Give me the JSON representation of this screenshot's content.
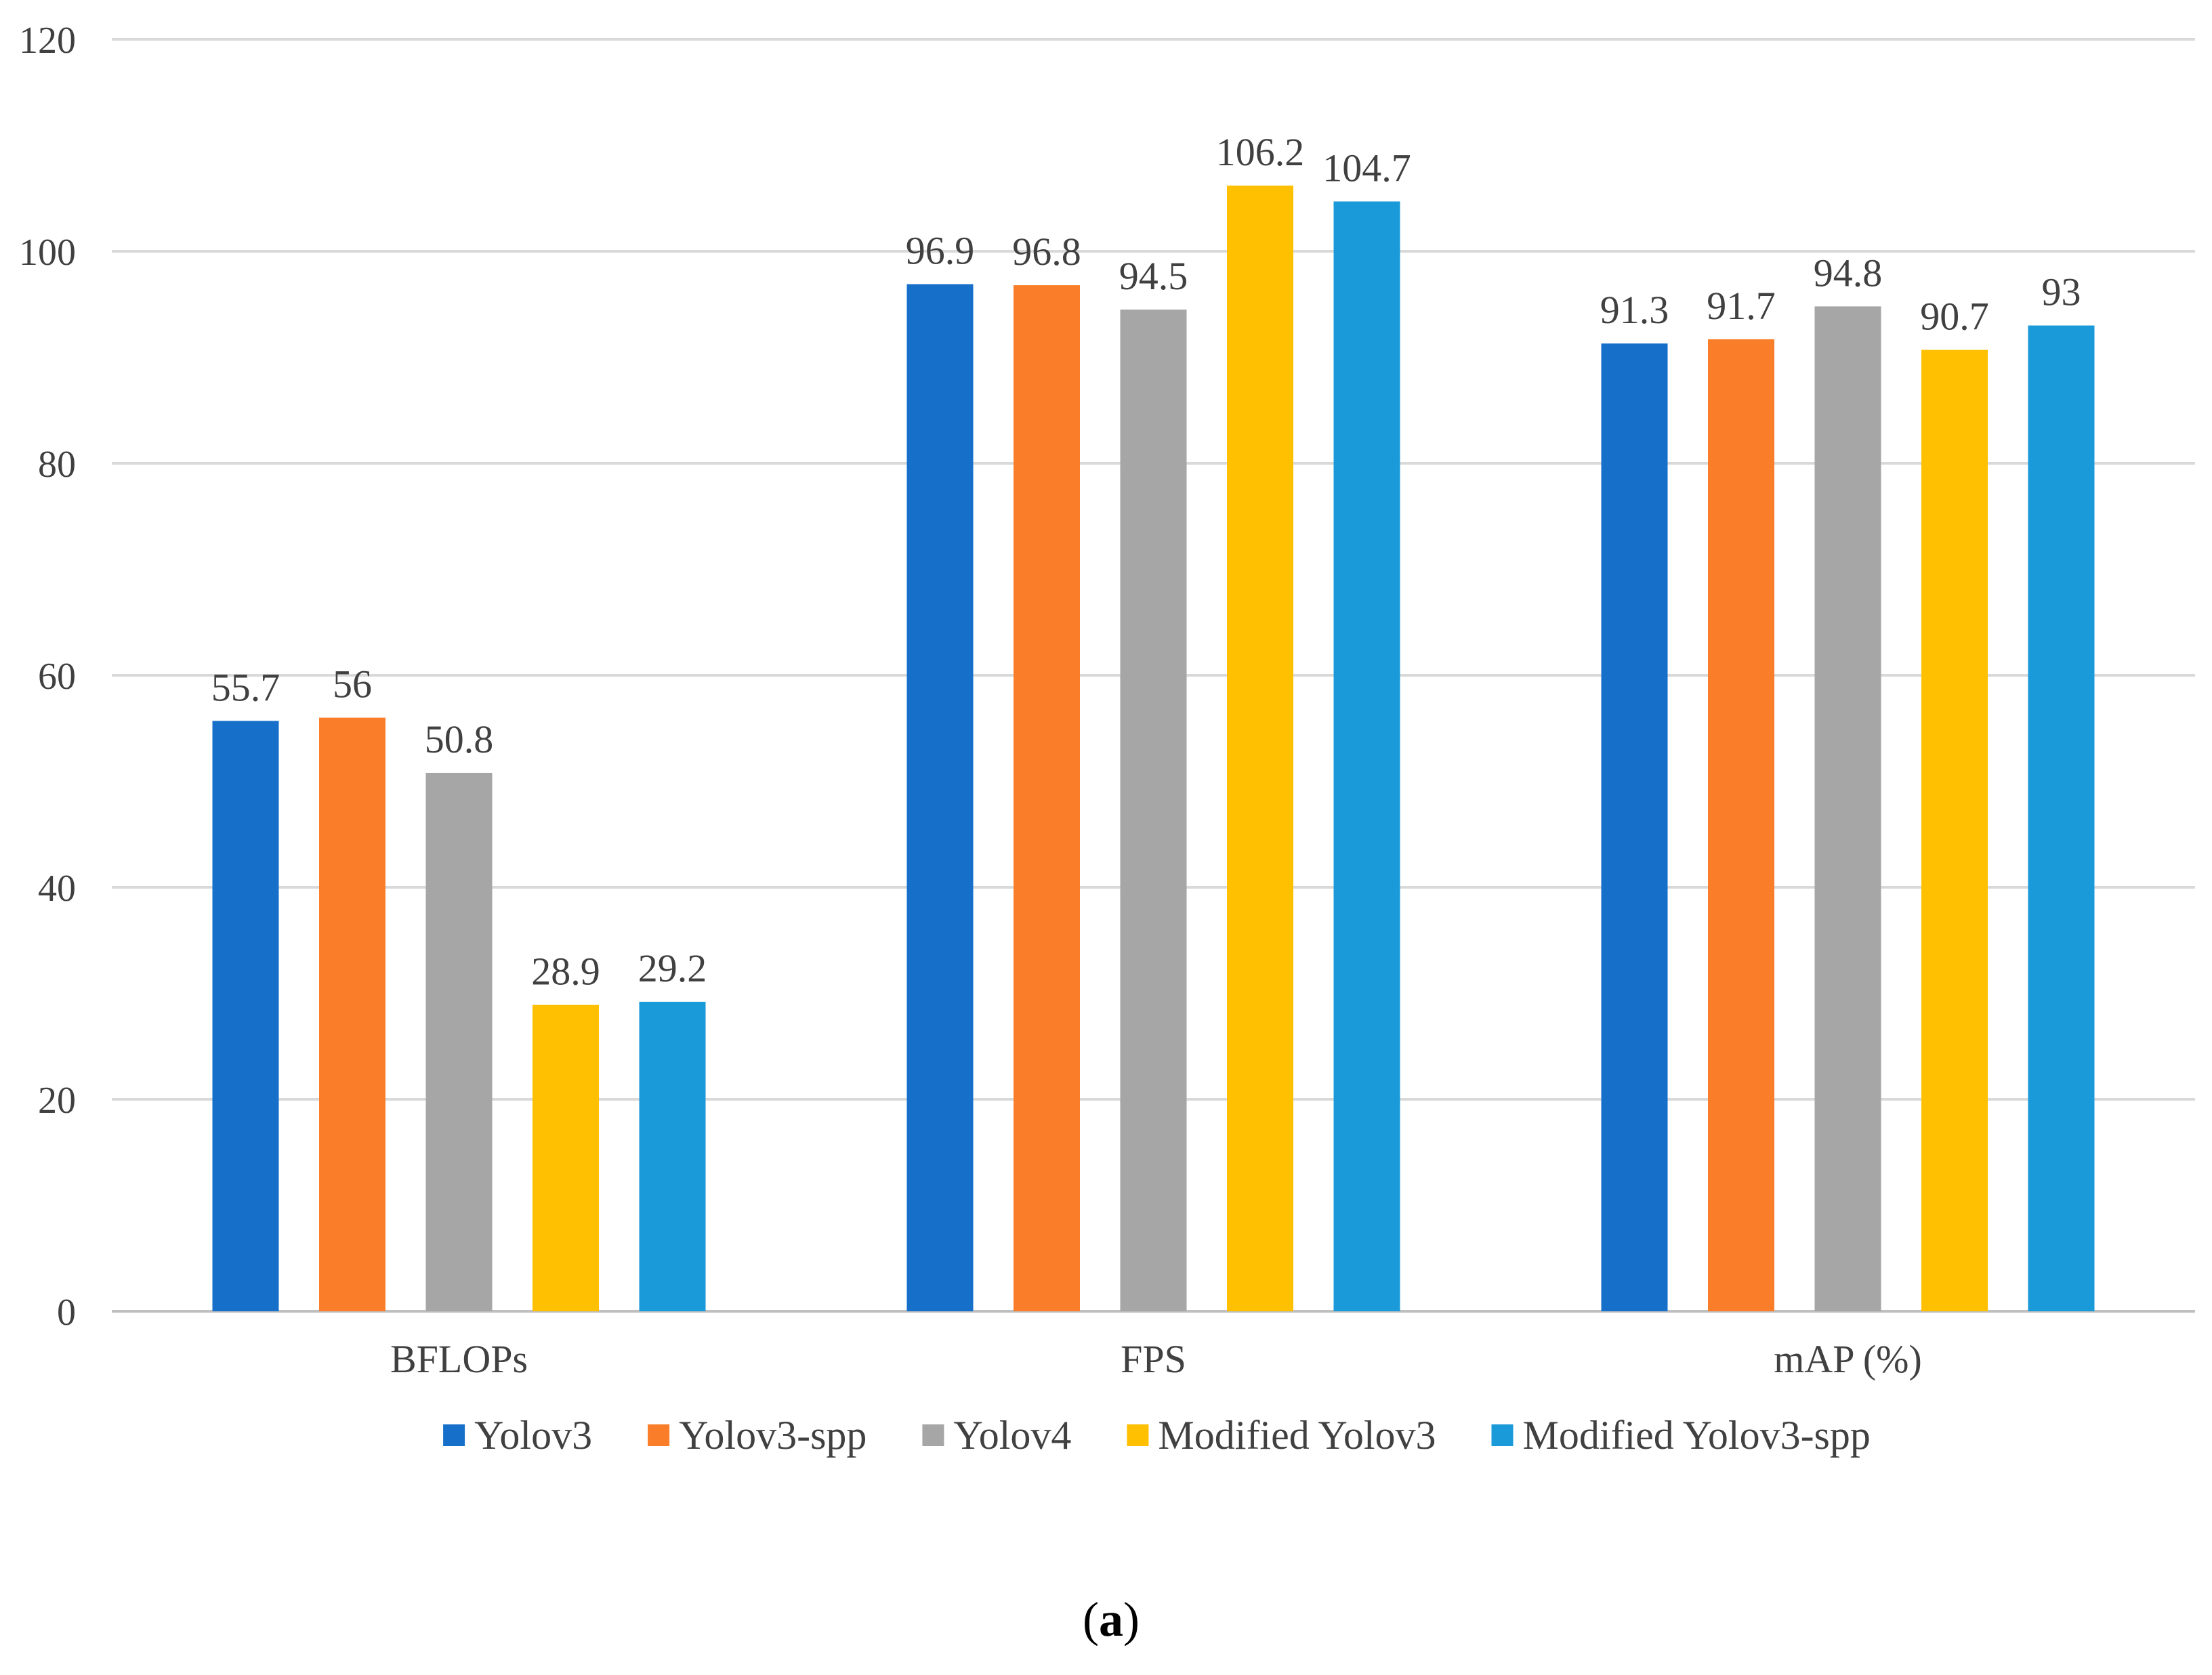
{
  "chart_data": {
    "type": "bar",
    "title": "",
    "xlabel": "",
    "ylabel": "",
    "ylim": [
      0,
      120
    ],
    "yticks": [
      0,
      20,
      40,
      60,
      80,
      100,
      120
    ],
    "grid": true,
    "legend_position": "bottom",
    "categories": [
      "BFLOPs",
      "FPS",
      "mAP (%)"
    ],
    "series": [
      {
        "name": "Yolov3",
        "color": "#1670C9",
        "values": [
          55.7,
          96.9,
          91.3
        ],
        "labels": [
          "55.7",
          "96.9",
          "91.3"
        ]
      },
      {
        "name": "Yolov3-spp",
        "color": "#FA7D29",
        "values": [
          56,
          96.8,
          91.7
        ],
        "labels": [
          "56",
          "96.8",
          "91.7"
        ]
      },
      {
        "name": "Yolov4",
        "color": "#A6A6A6",
        "values": [
          50.8,
          94.5,
          94.8
        ],
        "labels": [
          "50.8",
          "94.5",
          "94.8"
        ]
      },
      {
        "name": "Modified Yolov3",
        "color": "#FEC000",
        "values": [
          28.9,
          106.2,
          90.7
        ],
        "labels": [
          "28.9",
          "106.2",
          "90.7"
        ]
      },
      {
        "name": "Modified Yolov3-spp",
        "color": "#1A9AD9",
        "values": [
          29.2,
          104.7,
          93
        ],
        "labels": [
          "29.2",
          "104.7",
          "93"
        ]
      }
    ]
  },
  "caption": {
    "open": "(",
    "letter": "a",
    "close": ")"
  }
}
